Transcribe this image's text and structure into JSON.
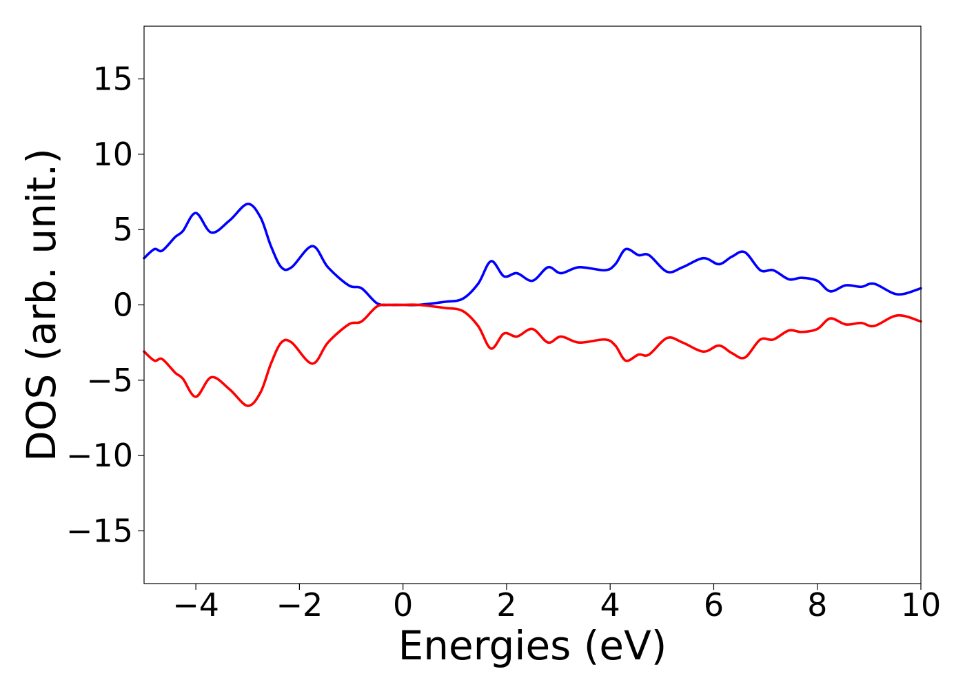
{
  "chart_data": {
    "type": "line",
    "title": "",
    "xlabel": "Energies (eV)",
    "ylabel": "DOS (arb. unit.)",
    "xlim": [
      -5,
      10
    ],
    "ylim": [
      -18.5,
      18.5
    ],
    "grid": false,
    "legend": "none",
    "x_ticks": [
      -4,
      -2,
      0,
      2,
      4,
      6,
      8,
      10
    ],
    "x_tick_labels": [
      "−4",
      "−2",
      "0",
      "2",
      "4",
      "6",
      "8",
      "10"
    ],
    "y_ticks": [
      15,
      10,
      5,
      0,
      -5,
      -10,
      -15
    ],
    "y_tick_labels": [
      "15",
      "10",
      "5",
      "0",
      "−5",
      "−10",
      "−15"
    ],
    "series": [
      {
        "color": "#0000ff",
        "x": [
          -5.0,
          -4.8,
          -4.65,
          -4.4,
          -4.25,
          -4.0,
          -3.7,
          -3.35,
          -3.0,
          -2.75,
          -2.55,
          -2.35,
          -2.15,
          -1.75,
          -1.45,
          -1.05,
          -0.8,
          -0.5,
          -0.25,
          0.0,
          0.3,
          0.8,
          1.15,
          1.45,
          1.7,
          1.95,
          2.2,
          2.5,
          2.8,
          3.05,
          3.4,
          3.9,
          4.1,
          4.3,
          4.55,
          4.75,
          5.1,
          5.4,
          5.8,
          6.1,
          6.35,
          6.6,
          6.9,
          7.15,
          7.45,
          7.7,
          8.0,
          8.25,
          8.55,
          8.85,
          9.1,
          9.55,
          10.0
        ],
        "y": [
          3.1,
          3.7,
          3.6,
          4.5,
          4.9,
          6.1,
          4.8,
          5.6,
          6.7,
          5.8,
          3.9,
          2.5,
          2.5,
          3.9,
          2.5,
          1.3,
          1.1,
          0.1,
          0.0,
          0.0,
          0.0,
          0.2,
          0.4,
          1.4,
          2.9,
          1.9,
          2.1,
          1.6,
          2.5,
          2.1,
          2.5,
          2.3,
          2.7,
          3.7,
          3.3,
          3.3,
          2.2,
          2.5,
          3.1,
          2.7,
          3.2,
          3.5,
          2.3,
          2.3,
          1.7,
          1.8,
          1.6,
          0.9,
          1.3,
          1.2,
          1.4,
          0.7,
          1.1
        ]
      },
      {
        "color": "#ff0000",
        "x": [
          -5.0,
          -4.8,
          -4.65,
          -4.4,
          -4.25,
          -4.0,
          -3.7,
          -3.35,
          -3.0,
          -2.75,
          -2.55,
          -2.35,
          -2.15,
          -1.75,
          -1.45,
          -1.05,
          -0.8,
          -0.5,
          -0.25,
          0.0,
          0.3,
          0.8,
          1.15,
          1.45,
          1.7,
          1.95,
          2.2,
          2.5,
          2.8,
          3.05,
          3.4,
          3.9,
          4.1,
          4.3,
          4.55,
          4.75,
          5.1,
          5.4,
          5.8,
          6.1,
          6.35,
          6.6,
          6.9,
          7.15,
          7.45,
          7.7,
          8.0,
          8.25,
          8.55,
          8.85,
          9.1,
          9.55,
          10.0
        ],
        "y": [
          -3.1,
          -3.7,
          -3.6,
          -4.5,
          -4.9,
          -6.1,
          -4.8,
          -5.6,
          -6.7,
          -5.8,
          -3.9,
          -2.5,
          -2.5,
          -3.9,
          -2.5,
          -1.3,
          -1.1,
          -0.1,
          0.0,
          0.0,
          0.0,
          -0.2,
          -0.4,
          -1.4,
          -2.9,
          -1.9,
          -2.1,
          -1.6,
          -2.5,
          -2.1,
          -2.5,
          -2.3,
          -2.7,
          -3.7,
          -3.3,
          -3.3,
          -2.2,
          -2.5,
          -3.1,
          -2.7,
          -3.2,
          -3.5,
          -2.3,
          -2.3,
          -1.7,
          -1.8,
          -1.6,
          -0.9,
          -1.3,
          -1.2,
          -1.4,
          -0.7,
          -1.1
        ]
      }
    ]
  }
}
